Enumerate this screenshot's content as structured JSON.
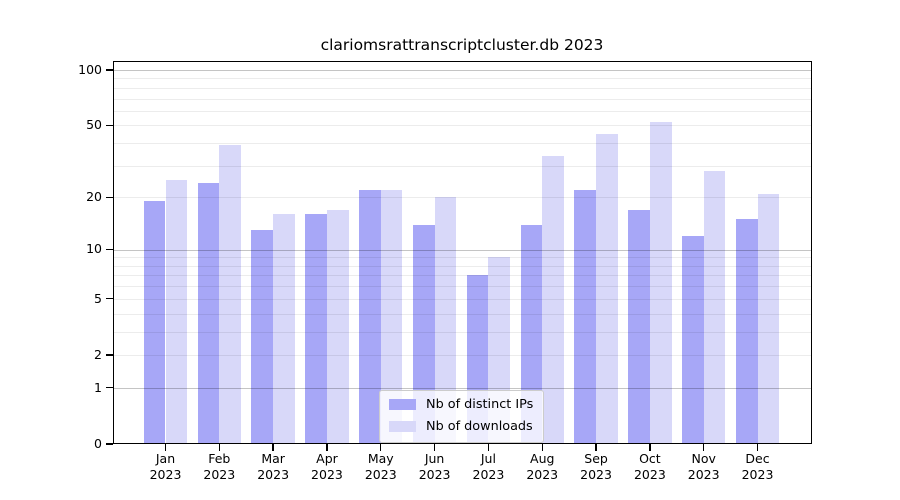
{
  "title": "clariomsrattranscriptcluster.db 2023",
  "colors": {
    "ips_bar": "#a7a7f7",
    "downloads_bar": "#d8d8f9",
    "grid_minor": "#ececec",
    "grid_major": "#c5c5c5",
    "axis": "#000000",
    "legend_border": "#cccccc",
    "background": "#ffffff"
  },
  "chart_data": {
    "type": "bar",
    "title": "clariomsrattranscriptcluster.db 2023",
    "categories": [
      "Jan",
      "Feb",
      "Mar",
      "Apr",
      "May",
      "Jun",
      "Jul",
      "Aug",
      "Sep",
      "Oct",
      "Nov",
      "Dec"
    ],
    "year_label": "2023",
    "series": [
      {
        "name": "Nb of distinct IPs",
        "color": "#a7a7f7",
        "values": [
          19,
          24,
          13,
          16,
          22,
          14,
          7,
          14,
          22,
          17,
          12,
          15
        ]
      },
      {
        "name": "Nb of downloads",
        "color": "#d8d8f9",
        "values": [
          25,
          39,
          16,
          17,
          22,
          20,
          9,
          34,
          45,
          52,
          28,
          21
        ]
      }
    ],
    "xlabel": "",
    "ylabel": "",
    "yscale": "log1p",
    "ylim": [
      0,
      113
    ],
    "y_ticks": [
      100,
      50,
      20,
      10,
      5,
      2,
      1,
      0
    ],
    "minor_gridlines": [
      2,
      3,
      4,
      6,
      7,
      8,
      9,
      5,
      20,
      30,
      40,
      50,
      60,
      70,
      80,
      90
    ],
    "major_gridlines": [
      1,
      10,
      100
    ],
    "grid": "on",
    "legend_position": "lower center"
  }
}
